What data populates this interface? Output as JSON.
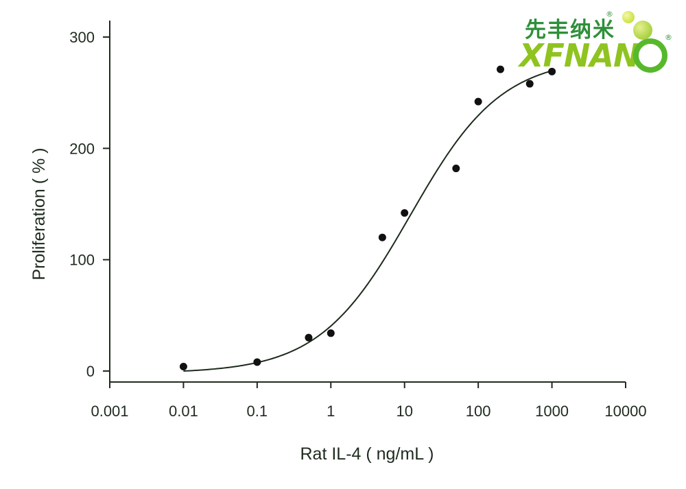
{
  "logo": {
    "chinese_text": "先丰纳米",
    "english_text": "XFNAN",
    "registered_mark": "®",
    "color_green": "#2f8f3a",
    "color_lime": "#8fc31f"
  },
  "colors": {
    "axis": "#1f2a1f",
    "points": "#111111",
    "curve": "#1c2a1c"
  },
  "chart_data": {
    "type": "scatter",
    "xlabel": "Rat IL-4 ( ng/mL )",
    "ylabel": "Proliferation ( % )",
    "x_scale": "log",
    "xlim": [
      0.001,
      10000
    ],
    "ylim": [
      -10,
      310
    ],
    "x_ticks": [
      {
        "value": 0.001,
        "label": "0.001"
      },
      {
        "value": 0.01,
        "label": "0.01"
      },
      {
        "value": 0.1,
        "label": "0.1"
      },
      {
        "value": 1,
        "label": "1"
      },
      {
        "value": 10,
        "label": "10"
      },
      {
        "value": 100,
        "label": "100"
      },
      {
        "value": 1000,
        "label": "1000"
      },
      {
        "value": 10000,
        "label": "10000"
      }
    ],
    "y_ticks": [
      {
        "value": 0,
        "label": "0"
      },
      {
        "value": 100,
        "label": "100"
      },
      {
        "value": 200,
        "label": "200"
      },
      {
        "value": 300,
        "label": "300"
      }
    ],
    "points": [
      {
        "x": 0.01,
        "y": 4
      },
      {
        "x": 0.1,
        "y": 8
      },
      {
        "x": 0.5,
        "y": 30
      },
      {
        "x": 1,
        "y": 34
      },
      {
        "x": 5,
        "y": 120
      },
      {
        "x": 10,
        "y": 142
      },
      {
        "x": 50,
        "y": 182
      },
      {
        "x": 100,
        "y": 242
      },
      {
        "x": 200,
        "y": 271
      },
      {
        "x": 500,
        "y": 258
      },
      {
        "x": 1000,
        "y": 269
      }
    ],
    "fit_curve": {
      "model": "4PL",
      "bottom": -2,
      "top": 282,
      "ec50": 12,
      "hill": 0.7,
      "x_range": [
        0.01,
        1000
      ]
    },
    "grid": false,
    "legend": "none"
  }
}
